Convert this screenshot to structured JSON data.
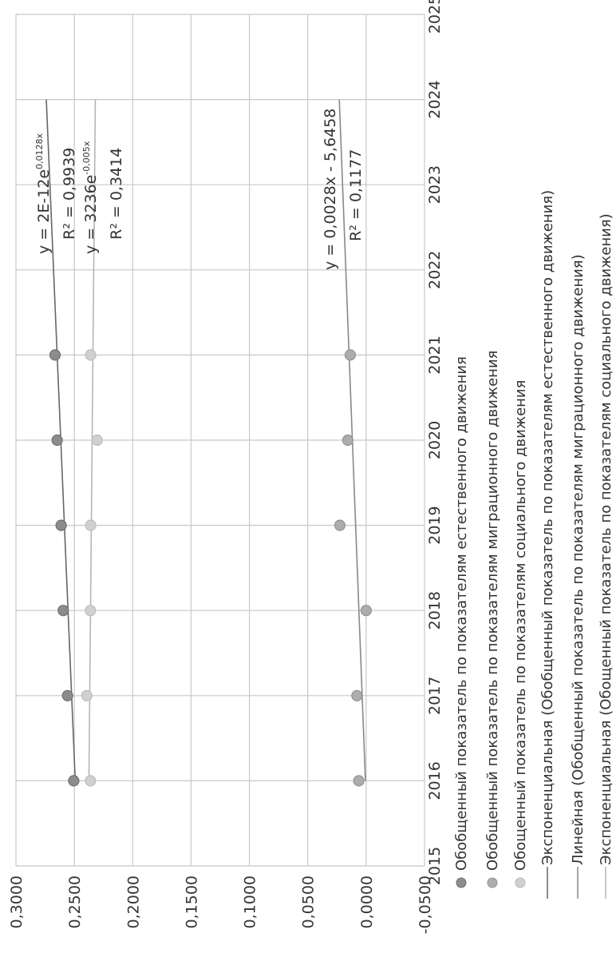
{
  "chart_data": {
    "type": "scatter",
    "x_ticks": [
      "2015",
      "2016",
      "2017",
      "2018",
      "2019",
      "2020",
      "2021",
      "2022",
      "2023",
      "2024",
      "2025"
    ],
    "y_ticks": [
      "-0,0500",
      "0,0000",
      "0,0500",
      "0,1000",
      "0,1500",
      "0,2000",
      "0,2500",
      "0,3000"
    ],
    "xlim": [
      2015,
      2025
    ],
    "ylim": [
      -0.05,
      0.3
    ],
    "grid": true,
    "legend_position": "bottom",
    "series": [
      {
        "name": "Обобщенный показатель по показателям естественного движения",
        "color": "#8c8c8c",
        "x": [
          2016,
          2017,
          2018,
          2019,
          2020,
          2021
        ],
        "y": [
          0.2505,
          0.2558,
          0.2595,
          0.2613,
          0.2647,
          0.2665
        ]
      },
      {
        "name": "Обобщенный показатель по показателям миграционного движения",
        "color": "#adadad",
        "x": [
          2016,
          2017,
          2018,
          2019,
          2020,
          2021
        ],
        "y": [
          0.0063,
          0.0079,
          0.0,
          0.0225,
          0.0157,
          0.0136
        ]
      },
      {
        "name": "Обощенный показатель по показателям социального движения",
        "color": "#d0d0d0",
        "x": [
          2016,
          2017,
          2018,
          2019,
          2020,
          2021
        ],
        "y": [
          0.2362,
          0.2393,
          0.2362,
          0.236,
          0.2304,
          0.236
        ]
      }
    ],
    "trendlines": [
      {
        "name": "Экспоненциальная (Обобщенный показатель по показателям естественного движения)",
        "color": "#666666",
        "x_range": [
          2016,
          2024
        ],
        "y_range": [
          0.2492,
          0.274
        ],
        "equation": "y = 2E-12e",
        "exponent": "0,0128x",
        "r2": "R² = 0,9939"
      },
      {
        "name": "Линейная (Обобщенный показатель по показателям миграционного движения)",
        "color": "#888888",
        "x_range": [
          2016,
          2024
        ],
        "y_range": [
          0.0006,
          0.023
        ],
        "equation": "y = 0,0028x - 5,6458",
        "r2": "R² = 0,1177"
      },
      {
        "name": "Экспоненциальная (Обощенный показатель по показателям социального движения)",
        "color": "#b5b5b5",
        "x_range": [
          2016,
          2024
        ],
        "y_range": [
          0.2375,
          0.232
        ],
        "equation": "y = 3236e",
        "exponent": "-0,005x",
        "r2": "R² = 0,3414"
      }
    ]
  }
}
